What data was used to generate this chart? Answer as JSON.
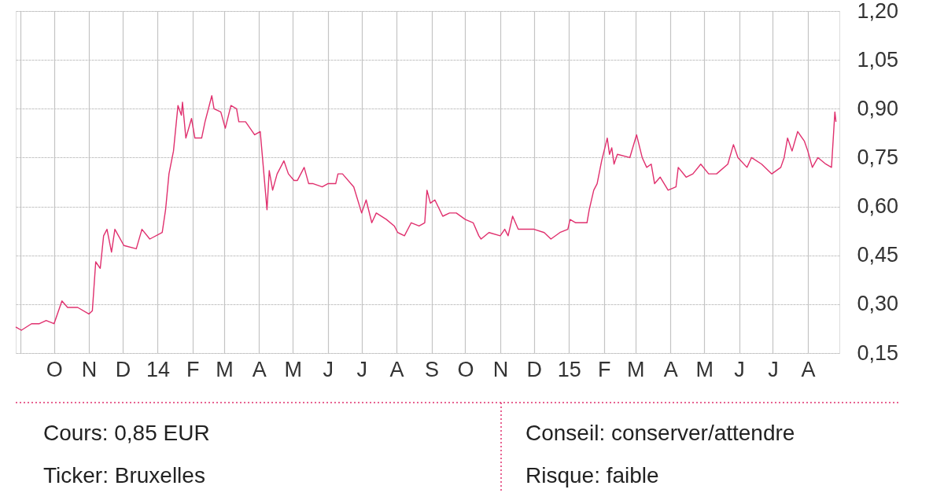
{
  "chart_data": {
    "type": "line",
    "x": [
      "2013-08-28",
      "2013-09-02",
      "2013-09-11",
      "2013-09-18",
      "2013-09-24",
      "2013-10-01",
      "2013-10-08",
      "2013-10-13",
      "2013-10-22",
      "2013-11-01",
      "2013-11-04",
      "2013-11-07",
      "2013-11-11",
      "2013-11-14",
      "2013-11-17",
      "2013-11-21",
      "2013-11-24",
      "2013-12-02",
      "2013-12-13",
      "2013-12-18",
      "2013-12-25",
      "2014-01-05",
      "2014-01-08",
      "2014-01-11",
      "2014-01-15",
      "2014-01-19",
      "2014-01-22",
      "2014-01-23",
      "2014-01-26",
      "2014-01-31",
      "2014-02-03",
      "2014-02-09",
      "2014-02-12",
      "2014-02-18",
      "2014-02-20",
      "2014-02-26",
      "2014-03-02",
      "2014-03-07",
      "2014-03-12",
      "2014-03-14",
      "2014-03-20",
      "2014-03-28",
      "2014-04-02",
      "2014-04-04",
      "2014-04-08",
      "2014-04-10",
      "2014-04-13",
      "2014-04-17",
      "2014-04-23",
      "2014-04-27",
      "2014-05-02",
      "2014-05-05",
      "2014-05-11",
      "2014-05-15",
      "2014-05-19",
      "2014-05-27",
      "2014-06-01",
      "2014-06-08",
      "2014-06-10",
      "2014-06-14",
      "2014-06-24",
      "2014-07-01",
      "2014-07-05",
      "2014-07-10",
      "2014-07-14",
      "2014-07-23",
      "2014-07-30",
      "2014-08-02",
      "2014-08-08",
      "2014-08-14",
      "2014-08-21",
      "2014-08-26",
      "2014-08-28",
      "2014-08-31",
      "2014-09-04",
      "2014-09-11",
      "2014-09-17",
      "2014-09-23",
      "2014-10-01",
      "2014-10-08",
      "2014-10-13",
      "2014-10-15",
      "2014-10-22",
      "2014-11-01",
      "2014-11-05",
      "2014-11-08",
      "2014-11-12",
      "2014-11-17",
      "2014-12-01",
      "2014-12-10",
      "2014-12-16",
      "2014-12-24",
      "2014-12-31",
      "2015-01-02",
      "2015-01-07",
      "2015-01-17",
      "2015-01-19",
      "2015-01-23",
      "2015-01-26",
      "2015-01-30",
      "2015-02-04",
      "2015-02-06",
      "2015-02-08",
      "2015-02-10",
      "2015-02-13",
      "2015-02-24",
      "2015-03-02",
      "2015-03-07",
      "2015-03-11",
      "2015-03-15",
      "2015-03-18",
      "2015-03-23",
      "2015-03-30",
      "2015-04-06",
      "2015-04-08",
      "2015-04-15",
      "2015-04-21",
      "2015-04-28",
      "2015-05-05",
      "2015-05-12",
      "2015-05-22",
      "2015-05-27",
      "2015-05-31",
      "2015-06-08",
      "2015-06-12",
      "2015-06-21",
      "2015-06-30",
      "2015-07-08",
      "2015-07-11",
      "2015-07-14",
      "2015-07-18",
      "2015-07-23",
      "2015-07-29",
      "2015-08-01",
      "2015-08-05",
      "2015-08-10",
      "2015-08-17",
      "2015-08-22",
      "2015-08-25",
      "2015-08-26"
    ],
    "series": [
      {
        "color": "#e0306e",
        "values": [
          0.23,
          0.22,
          0.24,
          0.24,
          0.25,
          0.24,
          0.31,
          0.29,
          0.29,
          0.27,
          0.28,
          0.43,
          0.41,
          0.51,
          0.53,
          0.46,
          0.53,
          0.48,
          0.47,
          0.53,
          0.5,
          0.52,
          0.59,
          0.7,
          0.77,
          0.91,
          0.88,
          0.92,
          0.81,
          0.87,
          0.81,
          0.81,
          0.86,
          0.94,
          0.9,
          0.89,
          0.84,
          0.91,
          0.9,
          0.86,
          0.86,
          0.82,
          0.83,
          0.75,
          0.59,
          0.71,
          0.65,
          0.7,
          0.74,
          0.7,
          0.68,
          0.68,
          0.72,
          0.67,
          0.67,
          0.66,
          0.67,
          0.67,
          0.7,
          0.7,
          0.66,
          0.58,
          0.62,
          0.55,
          0.58,
          0.56,
          0.54,
          0.52,
          0.51,
          0.55,
          0.54,
          0.55,
          0.65,
          0.61,
          0.62,
          0.57,
          0.58,
          0.58,
          0.56,
          0.55,
          0.51,
          0.5,
          0.52,
          0.51,
          0.53,
          0.51,
          0.57,
          0.53,
          0.53,
          0.52,
          0.5,
          0.52,
          0.53,
          0.56,
          0.55,
          0.55,
          0.59,
          0.65,
          0.67,
          0.74,
          0.81,
          0.76,
          0.78,
          0.73,
          0.76,
          0.75,
          0.82,
          0.75,
          0.72,
          0.73,
          0.67,
          0.69,
          0.65,
          0.66,
          0.72,
          0.69,
          0.7,
          0.73,
          0.7,
          0.7,
          0.73,
          0.79,
          0.75,
          0.72,
          0.75,
          0.73,
          0.7,
          0.72,
          0.75,
          0.81,
          0.77,
          0.83,
          0.8,
          0.77,
          0.72,
          0.75,
          0.73,
          0.72,
          0.89,
          0.86
        ]
      }
    ],
    "xlim": [
      "2013-08-28",
      "2015-08-29"
    ],
    "xticks": [
      {
        "value": "2013-09-01",
        "label": null
      },
      {
        "value": "2013-10-01",
        "label": "O"
      },
      {
        "value": "2013-11-01",
        "label": "N"
      },
      {
        "value": "2013-12-01",
        "label": "D"
      },
      {
        "value": "2014-01-01",
        "label": "14"
      },
      {
        "value": "2014-02-01",
        "label": "F"
      },
      {
        "value": "2014-03-01",
        "label": "M"
      },
      {
        "value": "2014-04-01",
        "label": "A"
      },
      {
        "value": "2014-05-01",
        "label": "M"
      },
      {
        "value": "2014-06-01",
        "label": "J"
      },
      {
        "value": "2014-07-01",
        "label": "J"
      },
      {
        "value": "2014-08-01",
        "label": "A"
      },
      {
        "value": "2014-09-01",
        "label": "S"
      },
      {
        "value": "2014-10-01",
        "label": "O"
      },
      {
        "value": "2014-11-01",
        "label": "N"
      },
      {
        "value": "2014-12-01",
        "label": "D"
      },
      {
        "value": "2015-01-01",
        "label": "15"
      },
      {
        "value": "2015-02-01",
        "label": "F"
      },
      {
        "value": "2015-03-01",
        "label": "M"
      },
      {
        "value": "2015-04-01",
        "label": "A"
      },
      {
        "value": "2015-05-01",
        "label": "M"
      },
      {
        "value": "2015-06-01",
        "label": "J"
      },
      {
        "value": "2015-07-01",
        "label": "J"
      },
      {
        "value": "2015-08-01",
        "label": "A"
      }
    ],
    "ylim": [
      0.15,
      1.2
    ],
    "yticks": [
      {
        "value": 0.15,
        "label": "0,15"
      },
      {
        "value": 0.3,
        "label": "0,30"
      },
      {
        "value": 0.45,
        "label": "0,45"
      },
      {
        "value": 0.6,
        "label": "0,60"
      },
      {
        "value": 0.75,
        "label": "0,75"
      },
      {
        "value": 0.9,
        "label": "0,90"
      },
      {
        "value": 1.05,
        "label": "1,05"
      },
      {
        "value": 1.2,
        "label": "1,20"
      }
    ],
    "grid": true,
    "annotations": [
      "Cours: 0,85 EUR",
      "Ticker: Bruxelles",
      "Conseil: conserver/attendre",
      "Risque: faible"
    ]
  }
}
